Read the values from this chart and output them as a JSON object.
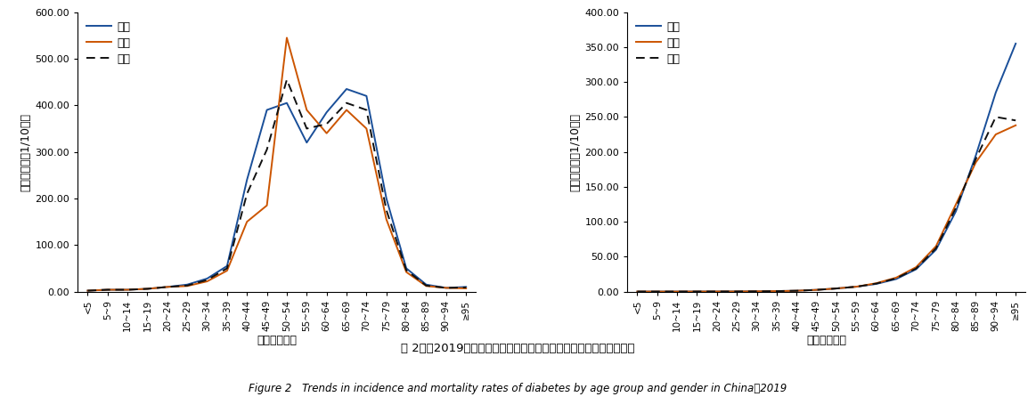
{
  "age_groups": [
    "<5",
    "5~9",
    "10~14",
    "15~19",
    "20~24",
    "25~29",
    "30~34",
    "35~39",
    "40~44",
    "45~49",
    "50~54",
    "55~59",
    "60~64",
    "65~69",
    "70~74",
    "75~79",
    "80~84",
    "85~89",
    "90~94",
    "≥95"
  ],
  "incidence_male": [
    2,
    4,
    4,
    6,
    10,
    15,
    28,
    55,
    240,
    390,
    405,
    320,
    385,
    435,
    420,
    200,
    50,
    15,
    8,
    10
  ],
  "incidence_female": [
    2,
    4,
    4,
    6,
    10,
    12,
    22,
    45,
    150,
    185,
    545,
    390,
    340,
    390,
    350,
    155,
    42,
    12,
    8,
    7
  ],
  "incidence_total": [
    2,
    4,
    4,
    6,
    10,
    13,
    25,
    50,
    210,
    305,
    455,
    350,
    360,
    405,
    390,
    175,
    46,
    13,
    8,
    9
  ],
  "mortality_male": [
    0.05,
    0.05,
    0.05,
    0.1,
    0.15,
    0.2,
    0.4,
    0.7,
    1.2,
    2.5,
    4.5,
    7,
    11,
    18,
    32,
    60,
    115,
    195,
    285,
    355
  ],
  "mortality_female": [
    0.05,
    0.05,
    0.05,
    0.1,
    0.15,
    0.2,
    0.4,
    0.7,
    1.2,
    2.5,
    4.5,
    7,
    12,
    20,
    35,
    65,
    125,
    185,
    225,
    238
  ],
  "mortality_total": [
    0.05,
    0.05,
    0.05,
    0.1,
    0.15,
    0.2,
    0.4,
    0.7,
    1.2,
    2.5,
    4.5,
    7,
    11.5,
    19,
    33,
    62,
    120,
    190,
    250,
    245
  ],
  "incidence_ylabel": "标化发病率（1/10万）",
  "mortality_ylabel": "标化死亡率（1/10万）",
  "xlabel": "年龄组（岁）",
  "legend_male": "男性",
  "legend_female": "女性",
  "legend_total": "总计",
  "color_male": "#1a4f99",
  "color_female": "#cc5500",
  "color_total": "#111111",
  "incidence_ylim": [
    0,
    600
  ],
  "incidence_yticks": [
    0,
    100,
    200,
    300,
    400,
    500,
    600
  ],
  "mortality_ylim": [
    0,
    400
  ],
  "mortality_yticks": [
    0,
    50,
    100,
    150,
    200,
    250,
    300,
    350,
    400
  ],
  "fig_caption_cn": "图 2　　2019年中国糖尿病各年龄段分性别发病率及死亡率变化趋势",
  "fig_caption_en": "Figure 2 Trends in incidence and mortality rates of diabetes by age group and gender in China，2019"
}
